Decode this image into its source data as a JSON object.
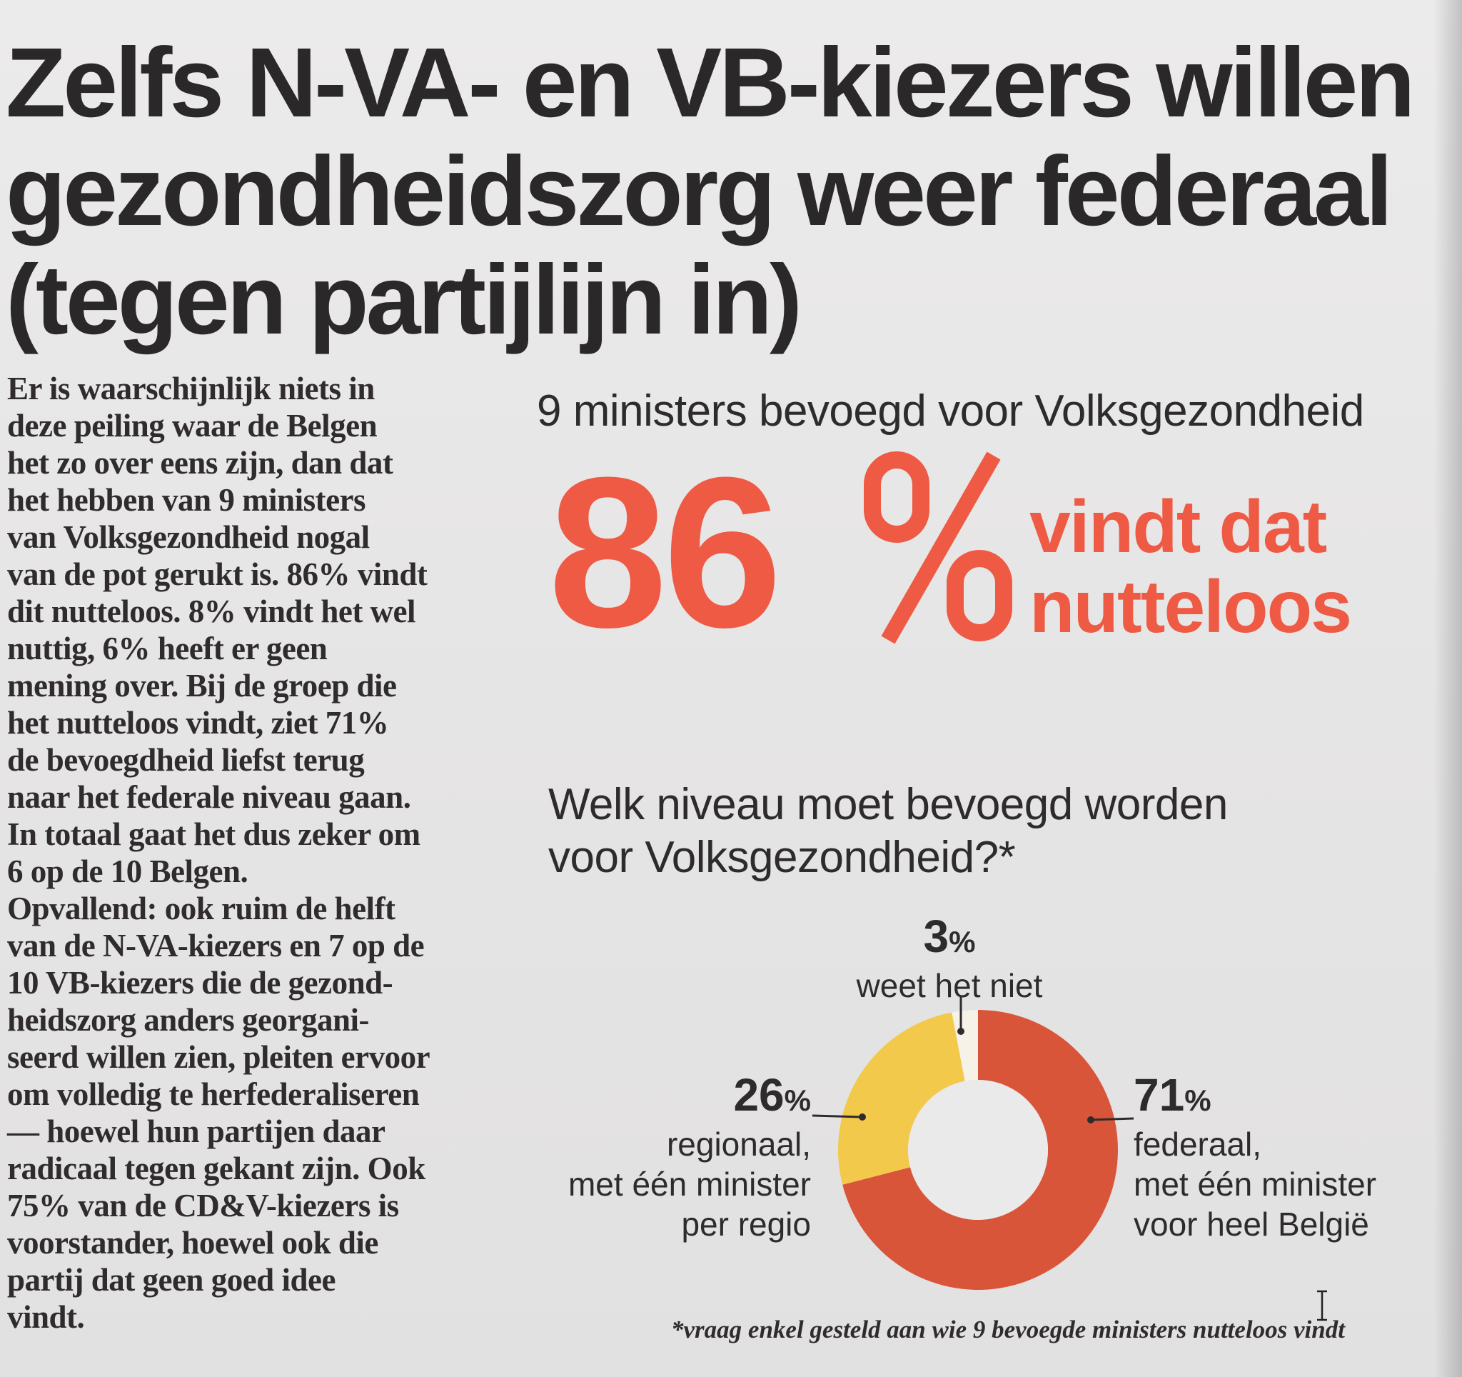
{
  "headline": {
    "lines": [
      "Zelfs N-VA- en VB-kiezers willen",
      "gezondheidszorg weer federaal",
      "(tegen partijlijn in)"
    ]
  },
  "body": {
    "lines": [
      "Er is waarschijnlijk niets in",
      "deze peiling waar de Belgen",
      "het zo over eens zijn, dan dat",
      "het hebben van 9 ministers",
      "van Volksgezondheid nogal",
      "van de pot gerukt is. 86% vindt",
      "dit nutteloos. 8% vindt het wel",
      "nuttig, 6% heeft er geen",
      "mening over. Bij de groep die",
      "het nutteloos vindt, ziet 71%",
      "de bevoegdheid liefst terug",
      "naar het federale niveau gaan.",
      "In totaal gaat het dus zeker om",
      "6 op de 10 Belgen.",
      "Opvallend: ook ruim de helft",
      "van de N-VA-kiezers en 7 op de",
      "10 VB-kiezers die de gezond-",
      "heidszorg anders georgani-",
      "seerd willen zien, pleiten ervoor",
      "om volledig te herfederaliseren",
      "— hoewel hun partijen daar",
      "radicaal tegen gekant zijn. Ook",
      "75% van de CD&V-kiezers is",
      "voorstander, hoewel ook die",
      "partij dat geen goed idee",
      "vindt."
    ]
  },
  "stat": {
    "subhead": "9 ministers bevoegd voor Volksgezondheid",
    "number": "86",
    "percent_symbol": "%",
    "caption_lines": [
      "vindt dat",
      "nutteloos"
    ],
    "accent_color": "#ee5a44"
  },
  "question": {
    "lines": [
      "Welk niveau moet bevoegd worden",
      "voor Volksgezondheid?*"
    ]
  },
  "chart_data": {
    "type": "pie",
    "donut": true,
    "slices": [
      {
        "value_label": "71",
        "value": 71,
        "label_lines": [
          "federaal,",
          "met één minister",
          "voor heel België"
        ],
        "color": "#d9553a"
      },
      {
        "value_label": "26",
        "value": 26,
        "label_lines": [
          "regionaal,",
          "met één minister",
          "per regio"
        ],
        "color": "#f2c94a"
      },
      {
        "value_label": "3",
        "value": 3,
        "label_lines": [
          "weet het niet"
        ],
        "color": "#f6f2e8"
      }
    ],
    "percent_symbol": "%"
  },
  "footnote": "*vraag enkel gesteld aan wie 9 bevoegde ministers nutteloos vindt"
}
